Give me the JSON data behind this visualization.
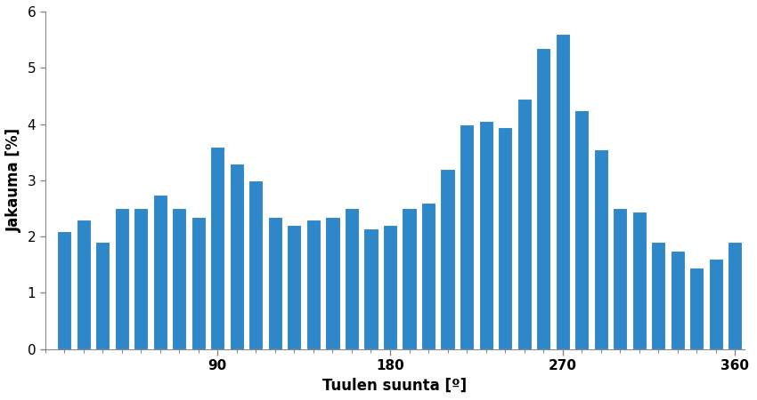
{
  "values": [
    2.1,
    2.3,
    1.9,
    2.5,
    2.5,
    2.75,
    2.5,
    2.35,
    3.6,
    3.3,
    3.0,
    2.35,
    2.2,
    2.3,
    2.35,
    2.5,
    2.15,
    2.2,
    2.5,
    2.6,
    3.2,
    4.0,
    4.05,
    3.95,
    4.45,
    5.35,
    5.6,
    4.25,
    3.55,
    2.5,
    2.45,
    1.9,
    1.75,
    1.45,
    1.6,
    1.9
  ],
  "bar_color": "#2E87C8",
  "xlabel": "Tuulen suunta [º]",
  "ylabel": "Jakauma [%]",
  "ylim": [
    0,
    6
  ],
  "yticks": [
    0,
    1,
    2,
    3,
    4,
    5,
    6
  ],
  "xticks": [
    90,
    180,
    270,
    360
  ],
  "bar_width": 7.5,
  "x_start": 10,
  "x_step": 10,
  "xlim": [
    0,
    365
  ],
  "background_color": "#ffffff",
  "xlabel_fontsize": 12,
  "ylabel_fontsize": 12,
  "tick_fontsize": 11,
  "xlabel_bold": true,
  "ylabel_bold": true
}
